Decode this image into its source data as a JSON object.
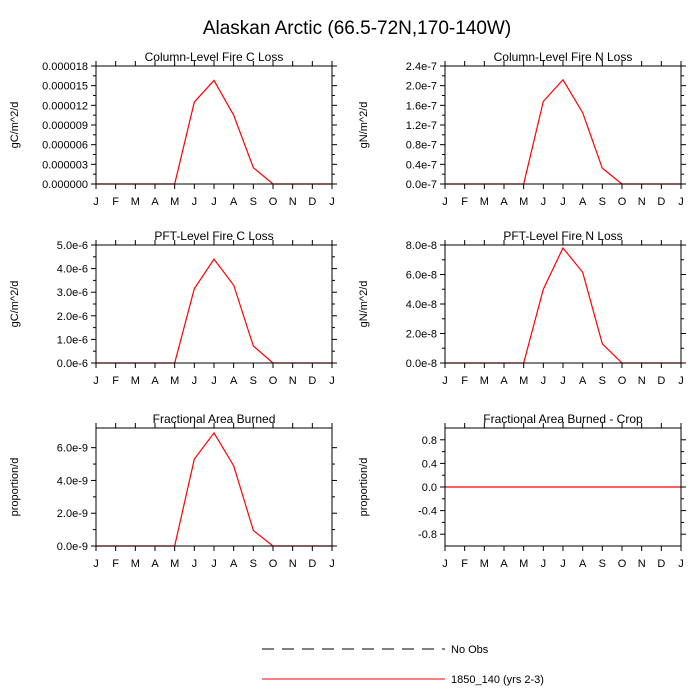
{
  "figure": {
    "title": "Alaskan Arctic (66.5-72N,170-140W)",
    "months": [
      "J",
      "F",
      "M",
      "A",
      "M",
      "J",
      "J",
      "A",
      "S",
      "O",
      "N",
      "D",
      "J"
    ],
    "series_color": "#ff0000",
    "legend": [
      {
        "label": "No Obs",
        "style": "dashed",
        "color": "#000000"
      },
      {
        "label": "1850_140 (yrs 2-3)",
        "style": "solid",
        "color": "#ff0000"
      }
    ]
  },
  "chart_data": [
    {
      "type": "line",
      "title": "Column-Level Fire C Loss",
      "ylabel": "gC/m^2/d",
      "ylim": [
        0,
        1.8e-05
      ],
      "yticks": [
        0,
        3e-06,
        6e-06,
        9e-06,
        1.2e-05,
        1.5e-05,
        1.8e-05
      ],
      "ytick_labels": [
        "0.000000",
        "0.000003",
        "0.000006",
        "0.000009",
        "0.000012",
        "0.000015",
        "0.000018"
      ],
      "series": [
        {
          "name": "1850_140 (yrs 2-3)",
          "values": [
            0,
            0,
            0,
            0,
            0,
            1.25e-05,
            1.58e-05,
            1.05e-05,
            2.5e-06,
            0,
            0,
            0,
            0
          ]
        }
      ]
    },
    {
      "type": "line",
      "title": "Column-Level Fire N Loss",
      "ylabel": "gN/m^2/d",
      "ylim": [
        0,
        2.4e-07
      ],
      "yticks": [
        0,
        4e-08,
        8e-08,
        1.2e-07,
        1.6e-07,
        2e-07,
        2.4e-07
      ],
      "ytick_labels": [
        "0.0e-7",
        "0.4e-7",
        "0.8e-7",
        "1.2e-7",
        "1.6e-7",
        "2.0e-7",
        "2.4e-7"
      ],
      "series": [
        {
          "name": "1850_140 (yrs 2-3)",
          "values": [
            0,
            0,
            0,
            0,
            0,
            1.68e-07,
            2.12e-07,
            1.45e-07,
            3.2e-08,
            0,
            0,
            0,
            0
          ]
        }
      ]
    },
    {
      "type": "line",
      "title": "PFT-Level Fire C Loss",
      "ylabel": "gC/m^2/d",
      "ylim": [
        0,
        5e-06
      ],
      "yticks": [
        0,
        1e-06,
        2e-06,
        3e-06,
        4e-06,
        5e-06
      ],
      "ytick_labels": [
        "0.0e-6",
        "1.0e-6",
        "2.0e-6",
        "3.0e-6",
        "4.0e-6",
        "5.0e-6"
      ],
      "series": [
        {
          "name": "1850_140 (yrs 2-3)",
          "values": [
            0,
            0,
            0,
            0,
            0,
            3.15e-06,
            4.4e-06,
            3.3e-06,
            7.2e-07,
            0,
            0,
            0,
            0
          ]
        }
      ]
    },
    {
      "type": "line",
      "title": "PFT-Level Fire N Loss",
      "ylabel": "gN/m^2/d",
      "ylim": [
        0,
        8e-08
      ],
      "yticks": [
        0,
        2e-08,
        4e-08,
        6e-08,
        8e-08
      ],
      "ytick_labels": [
        "0.0e-8",
        "2.0e-8",
        "4.0e-8",
        "6.0e-8",
        "8.0e-8"
      ],
      "series": [
        {
          "name": "1850_140 (yrs 2-3)",
          "values": [
            0,
            0,
            0,
            0,
            0,
            5e-08,
            7.8e-08,
            6.15e-08,
            1.3e-08,
            0,
            0,
            0,
            0
          ]
        }
      ]
    },
    {
      "type": "line",
      "title": "Fractional Area Burned",
      "ylabel": "proportion/d",
      "ylim": [
        0,
        7.2e-09
      ],
      "yticks": [
        0,
        2e-09,
        4e-09,
        6e-09
      ],
      "ytick_labels": [
        "0.0e-9",
        "2.0e-9",
        "4.0e-9",
        "6.0e-9"
      ],
      "series": [
        {
          "name": "1850_140 (yrs 2-3)",
          "values": [
            0,
            0,
            0,
            0,
            0,
            5.3e-09,
            6.9e-09,
            4.9e-09,
            9.5e-10,
            0,
            0,
            0,
            0
          ]
        }
      ]
    },
    {
      "type": "line",
      "title": "Fractional Area Burned - Crop",
      "ylabel": "proportion/d",
      "ylim": [
        -1.0,
        1.0
      ],
      "yticks": [
        -0.8,
        -0.4,
        0,
        0.4,
        0.8
      ],
      "ytick_labels": [
        "-0.8",
        "-0.4",
        "0.0",
        "0.4",
        "0.8"
      ],
      "series": [
        {
          "name": "1850_140 (yrs 2-3)",
          "values": [
            0,
            0,
            0,
            0,
            0,
            0,
            0,
            0,
            0,
            0,
            0,
            0,
            0
          ]
        }
      ]
    }
  ]
}
